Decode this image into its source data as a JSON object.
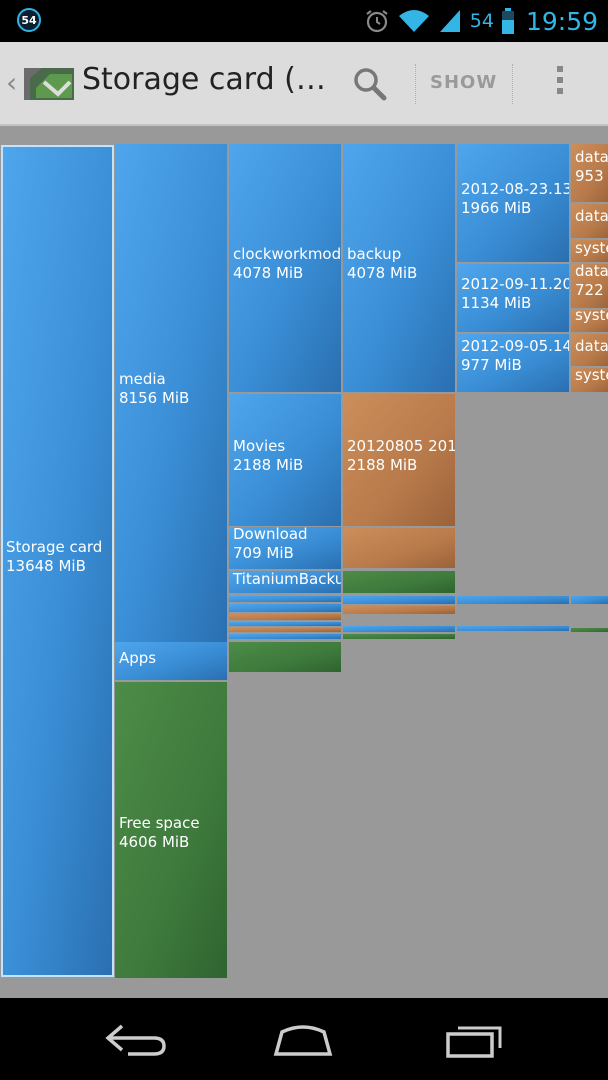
{
  "status_bar": {
    "notification_count": "54",
    "battery_percent": "54",
    "time": "19:59"
  },
  "action_bar": {
    "title": "Storage card (…",
    "show_label": "SHOW",
    "icons": [
      "app-logo-icon",
      "search-icon",
      "overflow-menu-icon"
    ]
  },
  "treemap": {
    "colors": {
      "folder": "#3a8ed6",
      "file": "#b87a4a",
      "free": "#3e7a3c",
      "background": "#999999"
    },
    "nodes": [
      {
        "id": "storage",
        "name": "Storage card",
        "size": "13648 MiB",
        "kind": "folder",
        "selected": true
      },
      {
        "id": "media",
        "name": "media",
        "size": "8156 MiB",
        "kind": "folder"
      },
      {
        "id": "apps",
        "name": "Apps",
        "size": "",
        "kind": "folder"
      },
      {
        "id": "free",
        "name": "Free space",
        "size": "4606 MiB",
        "kind": "free"
      },
      {
        "id": "clockworkmod",
        "name": "clockworkmod",
        "size": "4078 MiB",
        "kind": "folder"
      },
      {
        "id": "backup",
        "name": "backup",
        "size": "4078 MiB",
        "kind": "folder"
      },
      {
        "id": "movies",
        "name": "Movies",
        "size": "2188 MiB",
        "kind": "folder"
      },
      {
        "id": "movie_file",
        "name": "20120805 201",
        "size": "2188 MiB",
        "kind": "file"
      },
      {
        "id": "download",
        "name": "Download",
        "size": "709 MiB",
        "kind": "folder"
      },
      {
        "id": "titanium",
        "name": "TitaniumBacku",
        "size": "",
        "kind": "folder"
      },
      {
        "id": "b1",
        "name": "2012-08-23.13",
        "size": "1966 MiB",
        "kind": "folder"
      },
      {
        "id": "b2",
        "name": "2012-09-11.20",
        "size": "1134 MiB",
        "kind": "folder"
      },
      {
        "id": "b3",
        "name": "2012-09-05.14",
        "size": "977 MiB",
        "kind": "folder"
      },
      {
        "id": "b1_data",
        "name": "data",
        "size": "953",
        "kind": "file"
      },
      {
        "id": "b1_data2",
        "name": "data",
        "size": "",
        "kind": "file"
      },
      {
        "id": "b1_sys",
        "name": "syste",
        "size": "",
        "kind": "file"
      },
      {
        "id": "b2_data",
        "name": "data",
        "size": "722",
        "kind": "file"
      },
      {
        "id": "b2_sys",
        "name": "syste",
        "size": "",
        "kind": "file"
      },
      {
        "id": "b3_data",
        "name": "data",
        "size": "",
        "kind": "file"
      },
      {
        "id": "b3_sys",
        "name": "syste",
        "size": "",
        "kind": "file"
      }
    ]
  },
  "nav_bar": {
    "icons": [
      "back-icon",
      "home-icon",
      "recent-apps-icon"
    ]
  }
}
